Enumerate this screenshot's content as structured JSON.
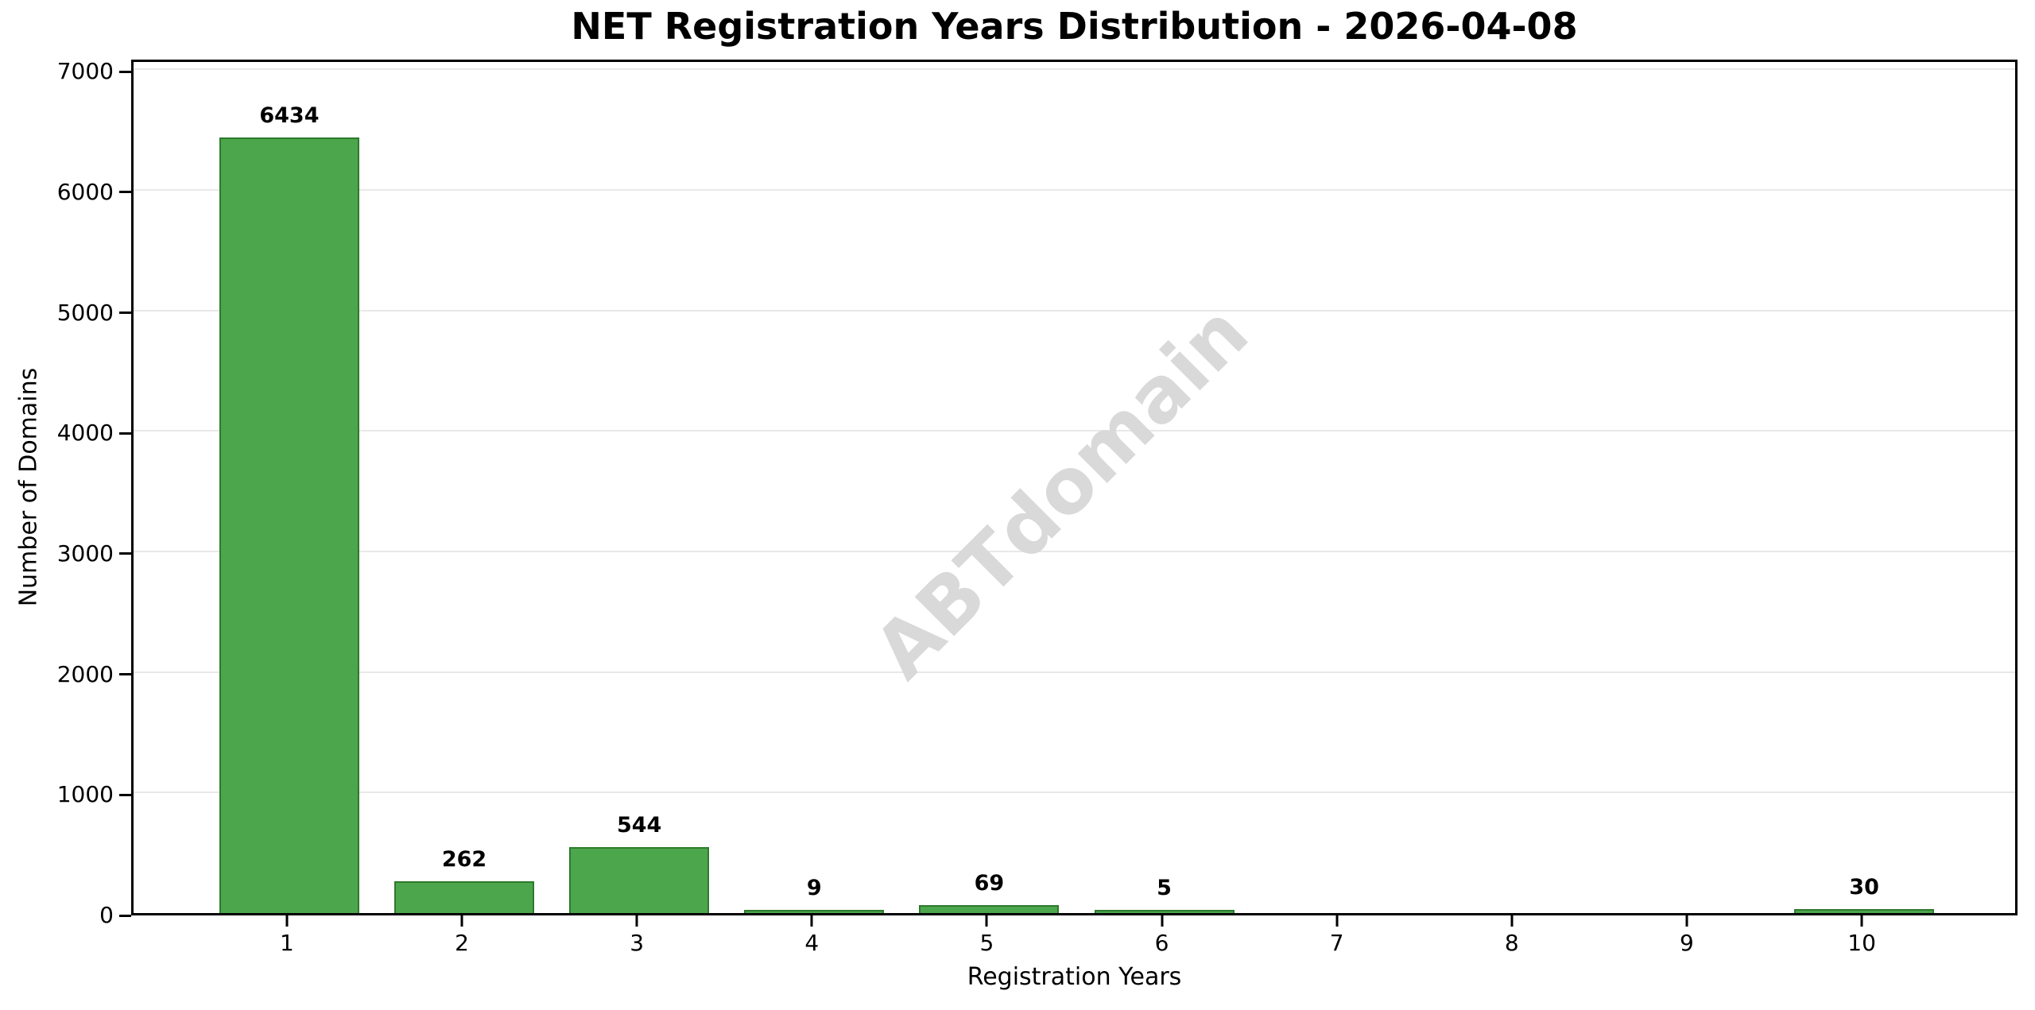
{
  "title": "NET Registration Years Distribution - 2026-04-08",
  "watermark": "ABTdomain",
  "chart_data": {
    "type": "bar",
    "title": "NET Registration Years Distribution - 2026-04-08",
    "xlabel": "Registration Years",
    "ylabel": "Number of Domains",
    "categories": [
      1,
      2,
      3,
      4,
      5,
      6,
      7,
      8,
      9,
      10
    ],
    "values": [
      6434,
      262,
      544,
      9,
      69,
      5,
      0,
      0,
      0,
      30
    ],
    "bar_labels": [
      "6434",
      "262",
      "544",
      "9",
      "69",
      "5",
      "",
      "",
      "",
      "30"
    ],
    "y_ticks": [
      0,
      1000,
      2000,
      3000,
      4000,
      5000,
      6000,
      7000
    ],
    "ylim": [
      0,
      7100
    ],
    "xlim": [
      0.11,
      10.89
    ],
    "bar_width_units": 0.8,
    "grid": "horizontal",
    "legend": "none",
    "watermark_text": "ABTdomain",
    "colors": {
      "bar_fill": "#4CA64C",
      "bar_edge": "#2D7A2D",
      "grid": "#E8E8E8",
      "watermark": "#D9D9D9",
      "text": "#000000",
      "background": "#FFFFFF"
    }
  }
}
